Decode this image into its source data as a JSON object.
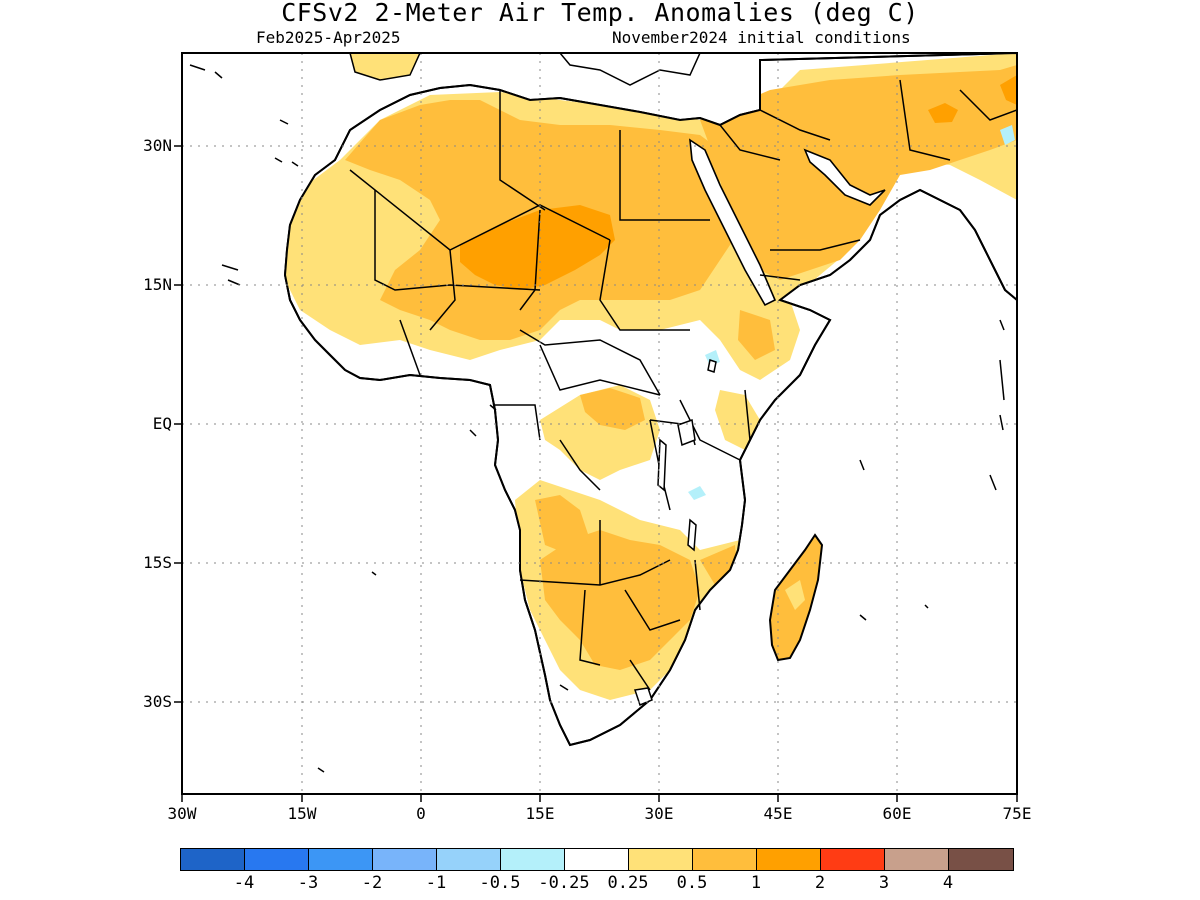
{
  "title": "CFSv2 2-Meter Air Temp. Anomalies (deg C)",
  "period": "Feb2025-Apr2025",
  "initial_conditions": "November2024 initial conditions",
  "lat_labels": [
    "30N",
    "15N",
    "EQ",
    "15S",
    "30S"
  ],
  "lon_labels": [
    "30W",
    "15W",
    "0",
    "15E",
    "30E",
    "45E",
    "60E",
    "75E"
  ],
  "colorbar": {
    "colors": [
      "#1e64c8",
      "#2878f0",
      "#3c96f5",
      "#78b4fa",
      "#96d2fa",
      "#b4f0fa",
      "#ffffff",
      "#ffe178",
      "#ffbe3c",
      "#ffa000",
      "#ff3c14",
      "#c8a08c",
      "#785046"
    ],
    "labels": [
      "-4",
      "-3",
      "-2",
      "-1",
      "-0.5",
      "-0.25",
      "0.25",
      "0.5",
      "1",
      "2",
      "3",
      "4"
    ]
  },
  "palette": {
    "light_anomaly": "#ffe178",
    "moderate_anomaly": "#ffbe3c",
    "strong_anomaly": "#ffa000",
    "cool_anomaly": "#b4f0fa"
  }
}
